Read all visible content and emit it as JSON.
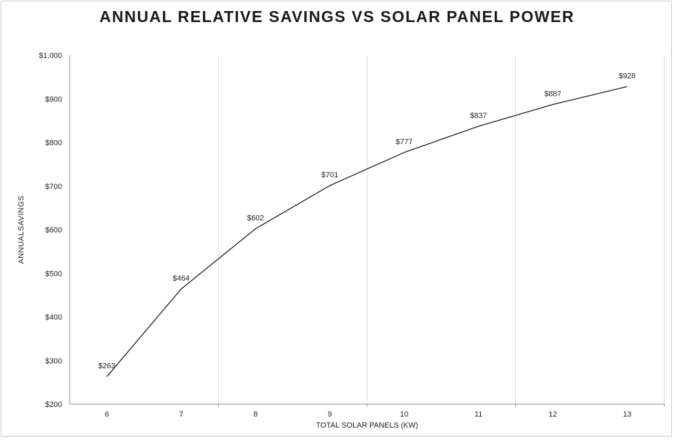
{
  "chart_data": {
    "type": "line",
    "title": "ANNUAL RELATIVE SAVINGS VS SOLAR PANEL POWER",
    "xlabel": "TOTAL SOLAR PANELS (KW)",
    "ylabel": "ANNUALSAVINGS",
    "x": [
      6,
      7,
      8,
      9,
      10,
      11,
      12,
      13
    ],
    "values": [
      263,
      464,
      602,
      701,
      777,
      837,
      887,
      928
    ],
    "data_labels": [
      "$263",
      "$464",
      "$602",
      "$701",
      "$777",
      "$837",
      "$887",
      "$928"
    ],
    "x_tick_labels": [
      "6",
      "7",
      "8",
      "9",
      "10",
      "11",
      "12",
      "13"
    ],
    "y_tick_labels": [
      "$1,000",
      "$900",
      "$800",
      "$700",
      "$600",
      "$500",
      "$400",
      "$300",
      "$200"
    ],
    "ylim": [
      200,
      1000
    ],
    "grid": "vertical gridlines only, one every 2 categories",
    "legend_position": "none",
    "colors": {
      "line": "#1a1a1a",
      "gridline": "#d9d9d9",
      "axis": "#8c8c8c",
      "text": "#1f1f1f",
      "frame_border": "#c8c8c8"
    }
  }
}
